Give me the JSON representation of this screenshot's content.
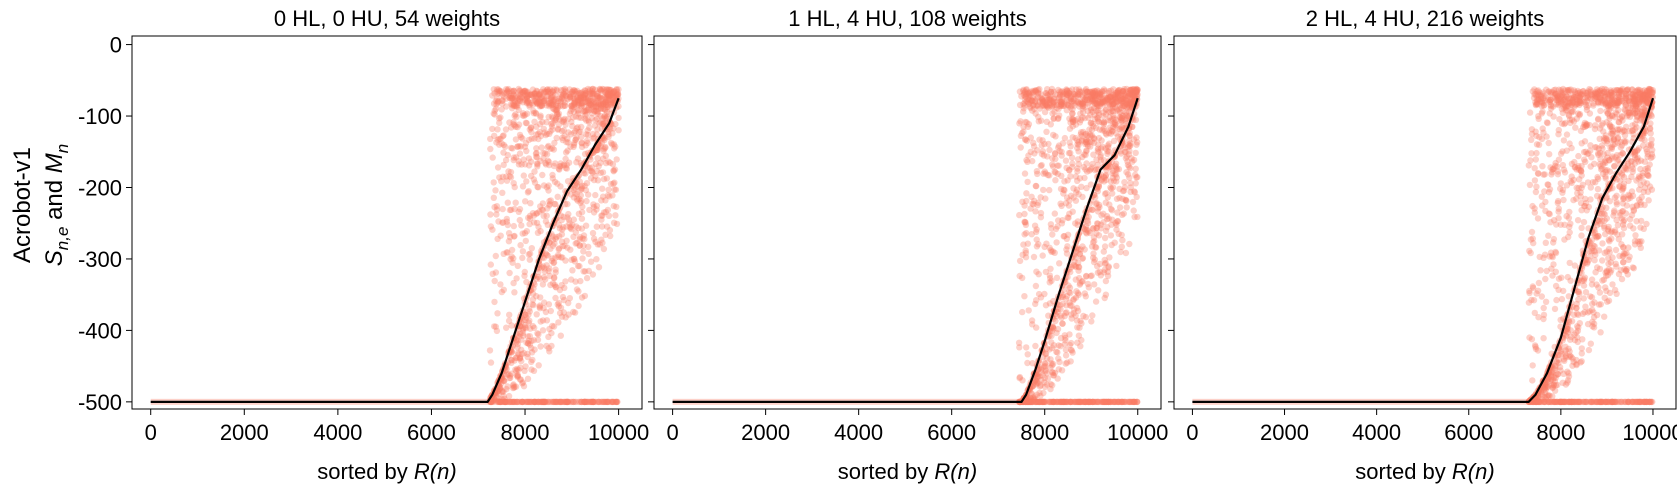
{
  "figure": {
    "ylabel_line1": "Acrobot-v1",
    "ylabel_line2_parts": [
      "S",
      "n,e",
      " and ",
      "M",
      "n"
    ],
    "xlabel_prefix": "sorted by ",
    "xlabel_italic": "R(n)",
    "scatter_color": "#fa7a64",
    "line_color": "#000000"
  },
  "chart_data": [
    {
      "type": "scatter",
      "title": "0 HL, 0 HU, 54 weights",
      "xlim": [
        -400,
        10500
      ],
      "ylim": [
        -510,
        12
      ],
      "xticks": [
        0,
        2000,
        4000,
        6000,
        8000,
        10000
      ],
      "yticks": [
        0,
        -100,
        -200,
        -300,
        -400,
        -500
      ],
      "ytick_labels": [
        "0",
        "-100",
        "-200",
        "-300",
        "-400",
        "-500"
      ],
      "series": [
        {
          "kind": "line",
          "x": [
            0,
            7200,
            7300,
            7500,
            7700,
            8000,
            8300,
            8600,
            8900,
            9200,
            9500,
            9800,
            10000
          ],
          "y": [
            -500,
            -500,
            -490,
            -460,
            -420,
            -360,
            -300,
            -250,
            -205,
            -175,
            -140,
            -110,
            -75
          ]
        },
        {
          "kind": "scatter",
          "description_values": {
            "x_range": [
              0,
              10000
            ],
            "flat_value": -500,
            "rise_start_x": 7250,
            "scatter_min_y": -500,
            "scatter_max_y": -62
          }
        }
      ]
    },
    {
      "type": "scatter",
      "title": "1 HL, 4 HU, 108 weights",
      "xlim": [
        -400,
        10500
      ],
      "ylim": [
        -510,
        12
      ],
      "xticks": [
        0,
        2000,
        4000,
        6000,
        8000,
        10000
      ],
      "yticks": [
        0,
        -100,
        -200,
        -300,
        -400,
        -500
      ],
      "ytick_labels": [
        "0",
        "-100",
        "-200",
        "-300",
        "-400",
        "-500"
      ],
      "series": [
        {
          "kind": "line",
          "x": [
            0,
            7500,
            7600,
            7800,
            8000,
            8300,
            8600,
            8900,
            9200,
            9500,
            9800,
            10000
          ],
          "y": [
            -500,
            -500,
            -490,
            -455,
            -415,
            -350,
            -290,
            -230,
            -175,
            -155,
            -115,
            -75
          ]
        },
        {
          "kind": "scatter",
          "description_values": {
            "x_range": [
              0,
              10000
            ],
            "flat_value": -500,
            "rise_start_x": 7450,
            "scatter_min_y": -500,
            "scatter_max_y": -62
          }
        }
      ]
    },
    {
      "type": "scatter",
      "title": "2 HL, 4 HU, 216 weights",
      "xlim": [
        -400,
        10500
      ],
      "ylim": [
        -510,
        12
      ],
      "xticks": [
        0,
        2000,
        4000,
        6000,
        8000,
        10000
      ],
      "yticks": [
        0,
        -100,
        -200,
        -300,
        -400,
        -500
      ],
      "ytick_labels": [
        "0",
        "-100",
        "-200",
        "-300",
        "-400",
        "-500"
      ],
      "series": [
        {
          "kind": "line",
          "x": [
            0,
            7300,
            7450,
            7700,
            8000,
            8300,
            8600,
            8900,
            9200,
            9500,
            9800,
            10000
          ],
          "y": [
            -500,
            -500,
            -490,
            -460,
            -410,
            -340,
            -270,
            -215,
            -180,
            -150,
            -115,
            -75
          ]
        },
        {
          "kind": "scatter",
          "description_values": {
            "x_range": [
              0,
              10000
            ],
            "flat_value": -500,
            "rise_start_x": 7300,
            "scatter_min_y": -500,
            "scatter_max_y": -62
          }
        }
      ]
    }
  ]
}
